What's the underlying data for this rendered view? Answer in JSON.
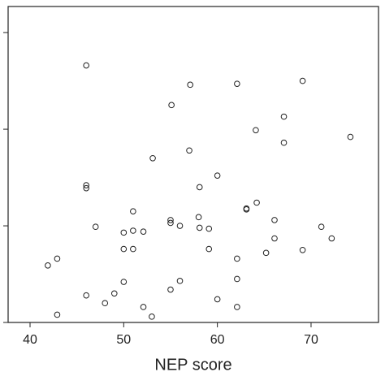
{
  "chart_data": {
    "type": "scatter",
    "x_label": "NEP score",
    "x": [
      46.0,
      57.1,
      62.1,
      69.1,
      55.1,
      67.1,
      64.1,
      74.2,
      67.1,
      57.0,
      53.1,
      60.0,
      46.0,
      46.0,
      58.1,
      64.2,
      51.0,
      63.1,
      63.1,
      58.0,
      55.0,
      66.1,
      47.0,
      55.0,
      56.0,
      58.1,
      59.1,
      50.0,
      51.0,
      52.1,
      71.1,
      72.2,
      66.1,
      50.0,
      51.0,
      59.1,
      65.2,
      69.1,
      42.9,
      41.9,
      62.1,
      50.0,
      56.0,
      62.1,
      46.0,
      49.0,
      55.0,
      48.0,
      60.0,
      52.1,
      62.1,
      42.9,
      53.0
    ],
    "values": [
      2.66,
      2.46,
      2.47,
      2.5,
      2.25,
      2.13,
      1.99,
      1.92,
      1.86,
      1.78,
      1.7,
      1.52,
      1.42,
      1.39,
      1.4,
      1.24,
      1.15,
      1.18,
      1.17,
      1.09,
      1.06,
      1.06,
      0.99,
      1.03,
      1.0,
      0.98,
      0.97,
      0.93,
      0.95,
      0.94,
      0.99,
      0.87,
      0.87,
      0.76,
      0.76,
      0.76,
      0.72,
      0.75,
      0.66,
      0.59,
      0.66,
      0.42,
      0.43,
      0.45,
      0.28,
      0.3,
      0.34,
      0.2,
      0.24,
      0.16,
      0.16,
      0.08,
      0.06
    ],
    "color": "#222222",
    "xlim": [
      37.66,
      77.2
    ],
    "xticks": [
      40,
      50,
      60,
      70
    ],
    "ylim": [
      0,
      3.27
    ],
    "yticks": [
      0,
      1,
      2,
      3
    ]
  }
}
